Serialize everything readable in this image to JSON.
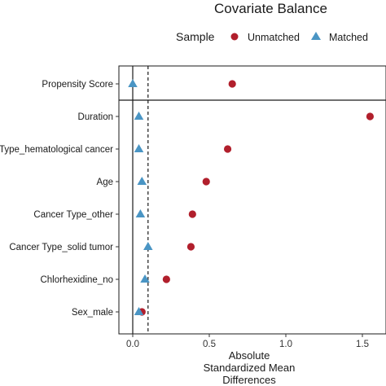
{
  "chart_data": {
    "type": "scatter",
    "title": "Covariate Balance",
    "legend": {
      "title": "Sample",
      "placement": "top",
      "entries": [
        {
          "name": "Unmatched",
          "color": "#b11f2c",
          "shape": "circle"
        },
        {
          "name": "Matched",
          "color": "#4a95c4",
          "shape": "triangle"
        }
      ]
    },
    "xlabel_lines": [
      "Absolute",
      "Standardized Mean",
      "Differences"
    ],
    "xlim": [
      -0.08,
      1.66
    ],
    "xticks": [
      {
        "value": 0.0,
        "label": "0.0"
      },
      {
        "value": 0.5,
        "label": "0.5"
      },
      {
        "value": 1.0,
        "label": "1.0"
      },
      {
        "value": 1.5,
        "label": "1.5"
      }
    ],
    "reference_lines": {
      "zero": 0,
      "threshold": 0.1
    },
    "categories": [
      "Propensity Score",
      "Duration",
      "Cancer Type_hematological cancer",
      "Age",
      "Cancer Type_other",
      "Cancer Type_solid tumor",
      "Chlorhexidine_no",
      "Sex_male"
    ],
    "series": [
      {
        "name": "Unmatched",
        "values": [
          0.65,
          1.55,
          0.62,
          0.48,
          0.39,
          0.38,
          0.22,
          0.06
        ]
      },
      {
        "name": "Matched",
        "values": [
          0.0,
          0.04,
          0.04,
          0.06,
          0.05,
          0.1,
          0.08,
          0.04
        ]
      }
    ],
    "separator_after_index": 0,
    "grid": false
  }
}
